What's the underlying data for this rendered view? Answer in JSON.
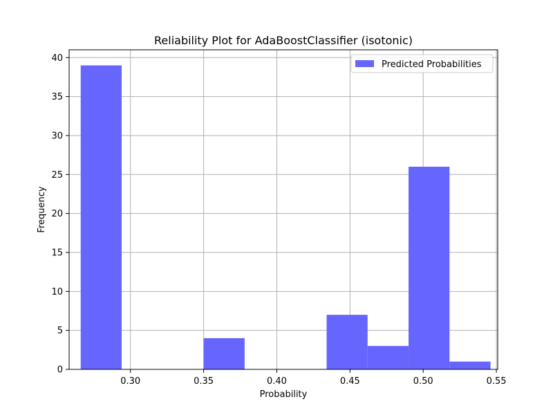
{
  "chart_data": {
    "type": "bar",
    "title": "Reliability Plot for AdaBoostClassifier (isotonic)",
    "xlabel": "Probability",
    "ylabel": "Frequency",
    "xlim": [
      0.2581,
      0.5509
    ],
    "ylim": [
      0,
      41.0
    ],
    "grid": true,
    "legend_position": "top-right",
    "bar_color": "#6666ff",
    "bins": [
      {
        "x0": 0.266,
        "x1": 0.294,
        "value": 39
      },
      {
        "x0": 0.294,
        "x1": 0.322,
        "value": 0
      },
      {
        "x0": 0.322,
        "x1": 0.35,
        "value": 0
      },
      {
        "x0": 0.35,
        "x1": 0.378,
        "value": 4
      },
      {
        "x0": 0.378,
        "x1": 0.406,
        "value": 0
      },
      {
        "x0": 0.406,
        "x1": 0.434,
        "value": 0
      },
      {
        "x0": 0.434,
        "x1": 0.462,
        "value": 7
      },
      {
        "x0": 0.462,
        "x1": 0.49,
        "value": 3
      },
      {
        "x0": 0.49,
        "x1": 0.518,
        "value": 26
      },
      {
        "x0": 0.518,
        "x1": 0.546,
        "value": 1
      }
    ],
    "series": [
      {
        "name": "Predicted Probabilities",
        "color": "#6666ff"
      }
    ],
    "x_ticks": [
      {
        "value": 0.3,
        "label": "0.30"
      },
      {
        "value": 0.35,
        "label": "0.35"
      },
      {
        "value": 0.4,
        "label": "0.40"
      },
      {
        "value": 0.45,
        "label": "0.45"
      },
      {
        "value": 0.5,
        "label": "0.50"
      },
      {
        "value": 0.55,
        "label": "0.55"
      }
    ],
    "y_ticks": [
      {
        "value": 0,
        "label": "0"
      },
      {
        "value": 5,
        "label": "5"
      },
      {
        "value": 10,
        "label": "10"
      },
      {
        "value": 15,
        "label": "15"
      },
      {
        "value": 20,
        "label": "20"
      },
      {
        "value": 25,
        "label": "25"
      },
      {
        "value": 30,
        "label": "30"
      },
      {
        "value": 35,
        "label": "35"
      },
      {
        "value": 40,
        "label": "40"
      }
    ]
  }
}
